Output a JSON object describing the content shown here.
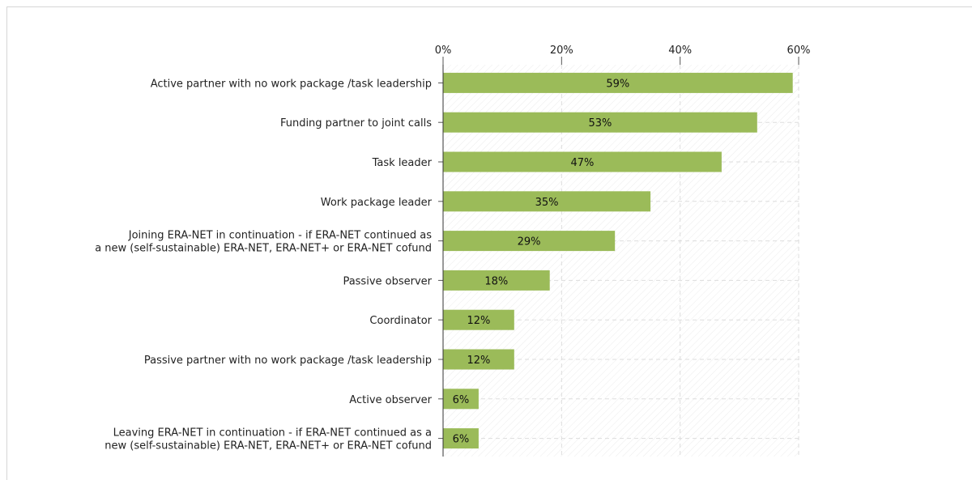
{
  "chart_data": {
    "type": "bar",
    "orientation": "horizontal",
    "categories": [
      [
        "Active partner with no work package /task leadership"
      ],
      [
        "Funding partner to joint calls"
      ],
      [
        "Task leader"
      ],
      [
        "Work package leader"
      ],
      [
        "Joining ERA-NET in continuation - if ERA-NET continued as",
        "a new (self-sustainable) ERA-NET, ERA-NET+ or ERA-NET cofund"
      ],
      [
        "Passive observer"
      ],
      [
        "Coordinator"
      ],
      [
        "Passive partner with no work package /task leadership"
      ],
      [
        "Active observer"
      ],
      [
        "Leaving ERA-NET in continuation - if ERA-NET continued as a",
        "new (self-sustainable) ERA-NET, ERA-NET+ or ERA-NET cofund"
      ]
    ],
    "values": [
      59,
      53,
      47,
      35,
      29,
      18,
      12,
      12,
      6,
      6
    ],
    "value_labels": [
      "59%",
      "53%",
      "47%",
      "35%",
      "29%",
      "18%",
      "12%",
      "12%",
      "6%",
      "6%"
    ],
    "xlim": [
      0,
      60
    ],
    "ticks": [
      0,
      20,
      40,
      60
    ],
    "tick_labels": [
      "0%",
      "20%",
      "40%",
      "60%"
    ],
    "axis_position": "top",
    "grid": true,
    "bar_color": "#9bbb59",
    "grid_color": "#dddddd",
    "title": "",
    "xlabel": "",
    "ylabel": ""
  }
}
